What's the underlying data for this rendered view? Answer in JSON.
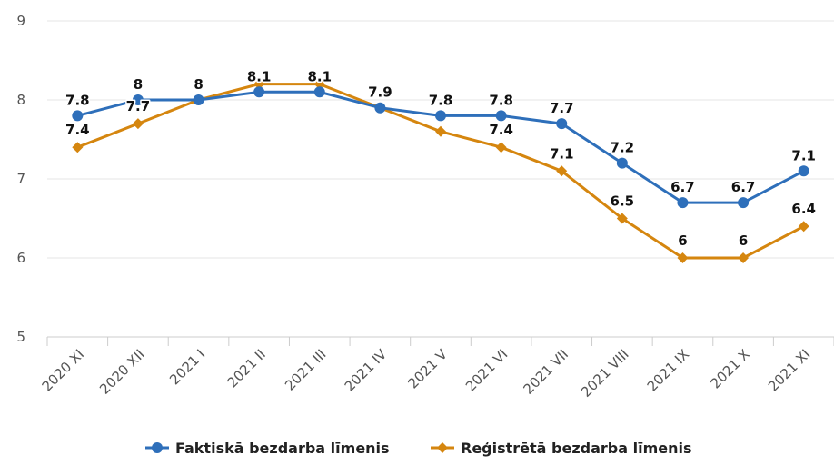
{
  "chart_data": {
    "type": "line",
    "title": "",
    "xlabel": "",
    "ylabel": "",
    "ylim": [
      5,
      9
    ],
    "yticks": [
      "5",
      "6",
      "7",
      "8",
      "9"
    ],
    "grid": true,
    "legend_position": "bottom-center",
    "categories": [
      "2020 XI",
      "2020 XII",
      "2021 I",
      "2021 II",
      "2021 III",
      "2021 IV",
      "2021 V",
      "2021 VI",
      "2021 VII",
      "2021 VIII",
      "2021 IX",
      "2021 X",
      "2021 XI"
    ],
    "series": [
      {
        "name": "Faktiskā bezdarba līmenis",
        "color": "#2e6fba",
        "marker": "circle",
        "values": [
          7.8,
          8,
          8,
          8.1,
          8.1,
          7.9,
          7.8,
          7.8,
          7.7,
          7.2,
          6.7,
          6.7,
          7.1
        ]
      },
      {
        "name": "Reģistrētā bezdarba līmenis",
        "color": "#d5860f",
        "marker": "diamond",
        "values": [
          7.4,
          7.7,
          8,
          8.2,
          8.2,
          7.9,
          7.6,
          7.4,
          7.1,
          6.5,
          6,
          6,
          6.4
        ]
      }
    ],
    "data_labels": {
      "series_0": [
        "7.8",
        "8",
        "8",
        "8.1",
        "8.1",
        "7.9",
        "7.8",
        "7.8",
        "7.7",
        "7.2",
        "6.7",
        "6.7",
        "7.1"
      ],
      "series_1": [
        "7.4",
        "7.7",
        "",
        "",
        "",
        "",
        "",
        "7.4",
        "7.1",
        "6.5",
        "6",
        "6",
        "6.4"
      ]
    }
  }
}
